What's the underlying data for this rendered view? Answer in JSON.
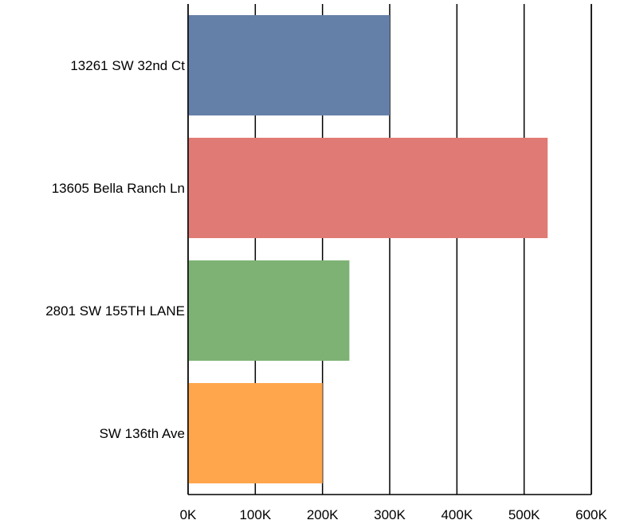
{
  "chart_data": {
    "type": "bar",
    "orientation": "horizontal",
    "categories": [
      "13261 SW 32nd Ct",
      "13605 Bella Ranch Ln",
      "2801 SW 155TH LANE",
      "SW 136th Ave"
    ],
    "values": [
      300000,
      535000,
      240000,
      200000
    ],
    "colors": [
      "#6580a8",
      "#e07a74",
      "#7db274",
      "#ffa64d"
    ],
    "xlim": [
      0,
      600000
    ],
    "xticks": [
      0,
      100000,
      200000,
      300000,
      400000,
      500000,
      600000
    ],
    "xtick_labels": [
      "0K",
      "100K",
      "200K",
      "300K",
      "400K",
      "500K",
      "600K"
    ],
    "title": "",
    "xlabel": "",
    "ylabel": "",
    "grid": true,
    "legend": "none"
  }
}
